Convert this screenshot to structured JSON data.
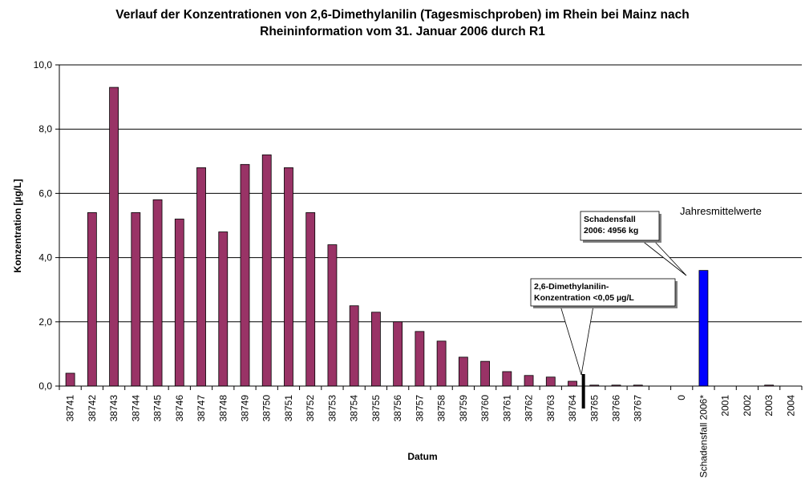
{
  "chart_data": {
    "type": "bar",
    "title_line1": "Verlauf der Konzentrationen von 2,6-Dimethylanilin (Tagesmischproben) im Rhein bei Mainz nach",
    "title_line2": "Rheininformation vom 31. Januar 2006 durch R1",
    "xlabel": "Datum",
    "ylabel": "Konzentration [µg/L]",
    "ylim": [
      0,
      10
    ],
    "yticks": [
      "0,0",
      "2,0",
      "4,0",
      "6,0",
      "8,0",
      "10,0"
    ],
    "grid": "horizontal",
    "categories": [
      "38741",
      "38742",
      "38743",
      "38744",
      "38745",
      "38746",
      "38747",
      "38748",
      "38749",
      "38750",
      "38751",
      "38752",
      "38753",
      "38754",
      "38755",
      "38756",
      "38757",
      "38758",
      "38759",
      "38760",
      "38761",
      "38762",
      "38763",
      "38764",
      "38765",
      "38766",
      "38767",
      "",
      "0",
      "Schadensfall 2006*",
      "2001",
      "2002",
      "2003",
      "2004"
    ],
    "values": [
      0.4,
      5.4,
      9.3,
      5.4,
      5.8,
      5.2,
      6.8,
      4.8,
      6.9,
      7.2,
      6.8,
      5.4,
      4.4,
      2.5,
      2.3,
      2.0,
      1.7,
      1.4,
      0.9,
      0.77,
      0.45,
      0.33,
      0.28,
      0.15,
      0.03,
      0.03,
      0.03,
      null,
      null,
      3.6,
      null,
      null,
      0.03,
      null
    ],
    "colors": {
      "daily": "#993366",
      "annual": "#0000FF",
      "marker": "#000000"
    },
    "annual_label": "Jahresmittelwerte",
    "annotations": [
      {
        "id": "detection-limit",
        "lines": [
          "2,6-Dimethylanilin-",
          "Konzentration <0,05 µg/L"
        ],
        "points_to": "38764/38765"
      },
      {
        "id": "damage-case",
        "lines": [
          "Schadensfall",
          "2006: 4956 kg"
        ],
        "points_to": "Schadensfall 2006*"
      }
    ]
  }
}
